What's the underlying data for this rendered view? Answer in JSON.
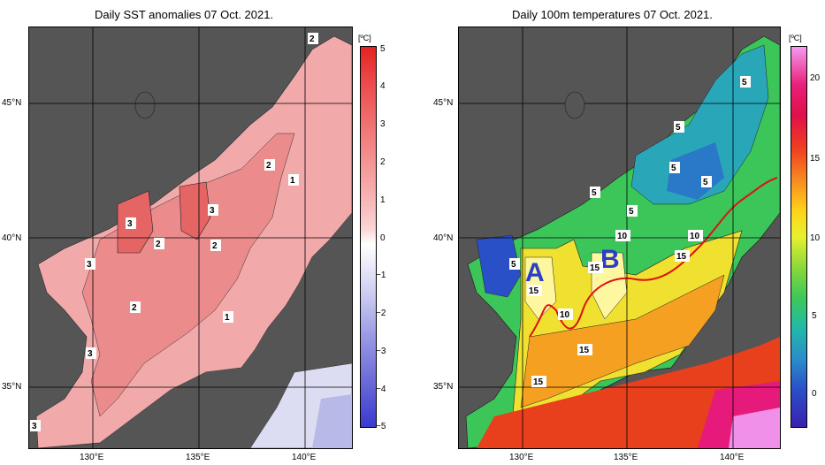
{
  "left_panel": {
    "title": "Daily SST anomalies 07 Oct. 2021.",
    "unit": "[ºC]",
    "colorbar_ticks": [
      "5",
      "4",
      "3",
      "2",
      "1",
      "0",
      "−1",
      "−2",
      "−3",
      "−4",
      "−5"
    ],
    "colorbar_colors": [
      "#e32222",
      "#ec4d4d",
      "#f07070",
      "#f49393",
      "#f7b4b4",
      "#fbd6d6",
      "#ffffff",
      "#e8e8f8",
      "#c8c8f0",
      "#9a9ae4",
      "#6a6ad8",
      "#3a3ad0"
    ],
    "lat_labels": [
      "45°N",
      "40°N",
      "35°N"
    ],
    "lon_labels": [
      "130°E",
      "135°E",
      "140°E"
    ],
    "contour_labels": [
      "2",
      "2",
      "3",
      "3",
      "2",
      "2",
      "3",
      "1",
      "2",
      "1",
      "3",
      "3",
      "1"
    ]
  },
  "right_panel": {
    "title": "Daily 100m temperatures 07 Oct. 2021.",
    "unit": "[ºC]",
    "colorbar_ticks": [
      "20",
      "15",
      "10",
      "5",
      "0"
    ],
    "colorbar_colors": [
      "#f59af0",
      "#e0104a",
      "#f04020",
      "#f88a20",
      "#ffd21a",
      "#e8f030",
      "#8ad83a",
      "#3ec85a",
      "#22b8a8",
      "#2a8ec8",
      "#2a50c8",
      "#3a20b0"
    ],
    "lat_labels": [
      "45°N",
      "40°N",
      "35°N"
    ],
    "lon_labels": [
      "130°E",
      "135°E",
      "140°E"
    ],
    "contour_labels": [
      "5",
      "5",
      "5",
      "5",
      "5",
      "5",
      "5",
      "10",
      "10",
      "15",
      "5",
      "15",
      "15",
      "10",
      "15",
      "15"
    ],
    "region_labels": [
      "A",
      "B"
    ]
  }
}
